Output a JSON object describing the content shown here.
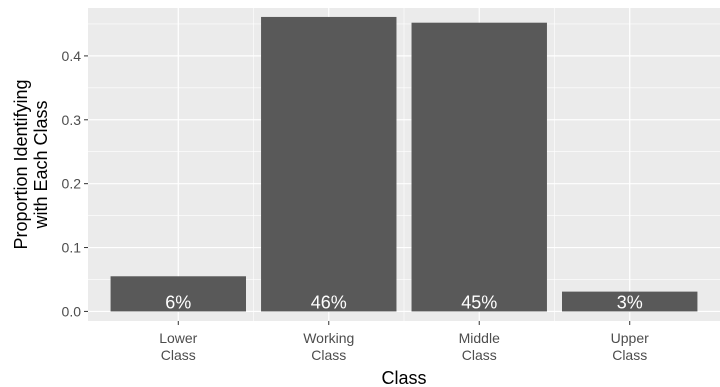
{
  "chart_data": {
    "type": "bar",
    "categories": [
      [
        "Lower",
        "Class"
      ],
      [
        "Working",
        "Class"
      ],
      [
        "Middle",
        "Class"
      ],
      [
        "Upper",
        "Class"
      ]
    ],
    "values": [
      0.055,
      0.461,
      0.452,
      0.031
    ],
    "data_labels": [
      "6%",
      "46%",
      "45%",
      "3%"
    ],
    "title": "",
    "xlabel": "Class",
    "ylabel": [
      "Proportion Identifying",
      "with Each Class"
    ],
    "ylim": [
      -0.015,
      0.475
    ],
    "yticks": [
      0.0,
      0.1,
      0.2,
      0.3,
      0.4
    ],
    "ytick_labels": [
      "0.0",
      "0.1",
      "0.2",
      "0.3",
      "0.4"
    ],
    "grid": true,
    "legend": "none",
    "colors": {
      "panel": "#ebebeb",
      "grid_major": "#ffffff",
      "bar": "#595959",
      "tick": "#333333",
      "tick_label": "#4d4d4d",
      "data_label": "#ffffff"
    }
  }
}
